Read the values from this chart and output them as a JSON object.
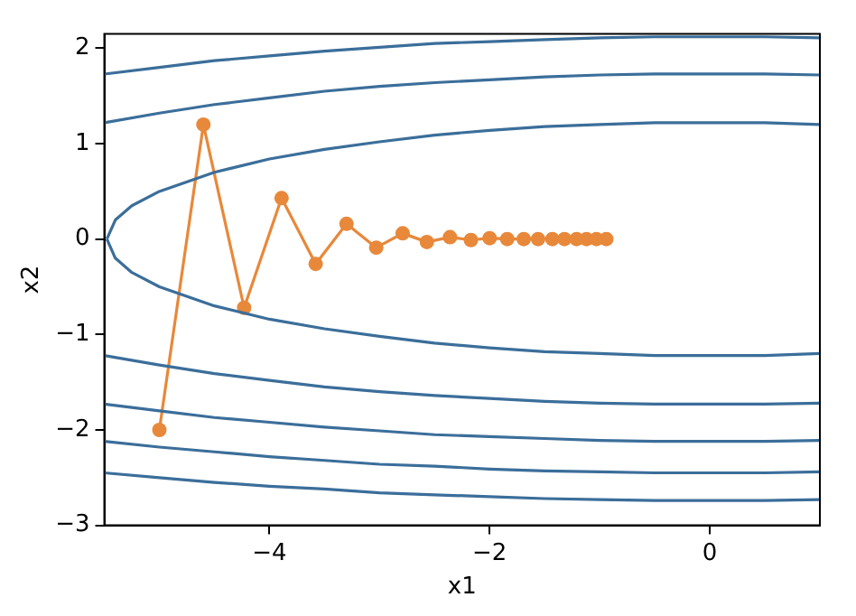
{
  "chart_data": {
    "type": "line",
    "xlabel": "x1",
    "ylabel": "x2",
    "xlim": [
      -5.5,
      1
    ],
    "ylim": [
      -3,
      2.15
    ],
    "xticks": [
      -4,
      -2,
      0
    ],
    "yticks": [
      -3,
      -2,
      -1,
      0,
      1,
      2
    ],
    "grid": false,
    "legend": false,
    "series": [
      {
        "color": "#3b6e9a",
        "marker": "none",
        "x": [
          -5.477,
          -5.4,
          -5.25,
          -5,
          -4.5,
          -4,
          -3.5,
          -3,
          -2.5,
          -2,
          -1.5,
          -1,
          -0.5,
          0,
          0.5,
          1
        ],
        "values": [
          0,
          0.2,
          0.35,
          0.5,
          0.7,
          0.84,
          0.94,
          1.02,
          1.09,
          1.14,
          1.18,
          1.2,
          1.22,
          1.22,
          1.22,
          1.2
        ]
      },
      {
        "color": "#3b6e9a",
        "marker": "none",
        "x": [
          -5.477,
          -5.4,
          -5.25,
          -5,
          -4.5,
          -4,
          -3.5,
          -3,
          -2.5,
          -2,
          -1.5,
          -1,
          -0.5,
          0,
          0.5,
          1
        ],
        "values": [
          0,
          -0.2,
          -0.35,
          -0.5,
          -0.7,
          -0.84,
          -0.94,
          -1.02,
          -1.09,
          -1.14,
          -1.18,
          -1.2,
          -1.22,
          -1.22,
          -1.22,
          -1.2
        ]
      },
      {
        "color": "#3b6e9a",
        "marker": "none",
        "x": [
          -5.5,
          -5,
          -4.5,
          -4,
          -3.5,
          -3,
          -2.5,
          -2,
          -1.5,
          -1,
          -0.5,
          0,
          0.5,
          1
        ],
        "values": [
          1.22,
          1.32,
          1.41,
          1.48,
          1.55,
          1.6,
          1.64,
          1.67,
          1.7,
          1.72,
          1.73,
          1.73,
          1.73,
          1.72
        ]
      },
      {
        "color": "#3b6e9a",
        "marker": "none",
        "x": [
          -5.5,
          -5,
          -4.5,
          -4,
          -3.5,
          -3,
          -2.5,
          -2,
          -1.5,
          -1,
          -0.5,
          0,
          0.5,
          1
        ],
        "values": [
          -1.22,
          -1.32,
          -1.41,
          -1.48,
          -1.55,
          -1.6,
          -1.64,
          -1.67,
          -1.7,
          -1.72,
          -1.73,
          -1.73,
          -1.73,
          -1.72
        ]
      },
      {
        "color": "#3b6e9a",
        "marker": "none",
        "x": [
          -5.5,
          -5,
          -4.5,
          -4,
          -3.5,
          -3,
          -2.5,
          -2,
          -1.5,
          -1,
          -0.5,
          0,
          0.5,
          1
        ],
        "values": [
          1.73,
          1.8,
          1.87,
          1.92,
          1.97,
          2.01,
          2.05,
          2.07,
          2.09,
          2.11,
          2.12,
          2.12,
          2.12,
          2.11
        ]
      },
      {
        "color": "#3b6e9a",
        "marker": "none",
        "x": [
          -5.5,
          -5,
          -4.5,
          -4,
          -3.5,
          -3,
          -2.5,
          -2,
          -1.5,
          -1,
          -0.5,
          0,
          0.5,
          1
        ],
        "values": [
          -1.73,
          -1.8,
          -1.87,
          -1.92,
          -1.97,
          -2.01,
          -2.05,
          -2.07,
          -2.09,
          -2.11,
          -2.12,
          -2.12,
          -2.12,
          -2.11
        ]
      },
      {
        "color": "#3b6e9a",
        "marker": "none",
        "x": [
          -5.5,
          -5,
          -4.5,
          -4,
          -3.5,
          -3,
          -2.5,
          -2,
          -1.5,
          -1,
          -0.5,
          0,
          0.5,
          1
        ],
        "values": [
          -2.12,
          -2.18,
          -2.23,
          -2.28,
          -2.32,
          -2.36,
          -2.38,
          -2.41,
          -2.43,
          -2.44,
          -2.45,
          -2.45,
          -2.45,
          -2.44
        ]
      },
      {
        "color": "#3b6e9a",
        "marker": "none",
        "x": [
          -5.5,
          -5,
          -4.5,
          -4,
          -3.5,
          -3,
          -2.5,
          -2,
          -1.5,
          -1,
          -0.5,
          0,
          0.5,
          1
        ],
        "values": [
          -2.45,
          -2.5,
          -2.55,
          -2.59,
          -2.62,
          -2.66,
          -2.68,
          -2.7,
          -2.72,
          -2.73,
          -2.74,
          -2.74,
          -2.74,
          -2.73
        ]
      },
      {
        "color": "#e8883a",
        "marker": "circle",
        "x": [
          -5,
          -4.6,
          -4.23,
          -3.89,
          -3.58,
          -3.3,
          -3.03,
          -2.79,
          -2.57,
          -2.36,
          -2.17,
          -2,
          -1.84,
          -1.69,
          -1.56,
          -1.43,
          -1.32,
          -1.21,
          -1.12,
          -1.03,
          -0.94
        ],
        "values": [
          -2,
          1.2,
          -0.72,
          0.43,
          -0.26,
          0.16,
          -0.09,
          0.06,
          -0.03,
          0.02,
          -0.01,
          0.01,
          0,
          0,
          0,
          0,
          0,
          0,
          0,
          0,
          0
        ]
      }
    ]
  }
}
